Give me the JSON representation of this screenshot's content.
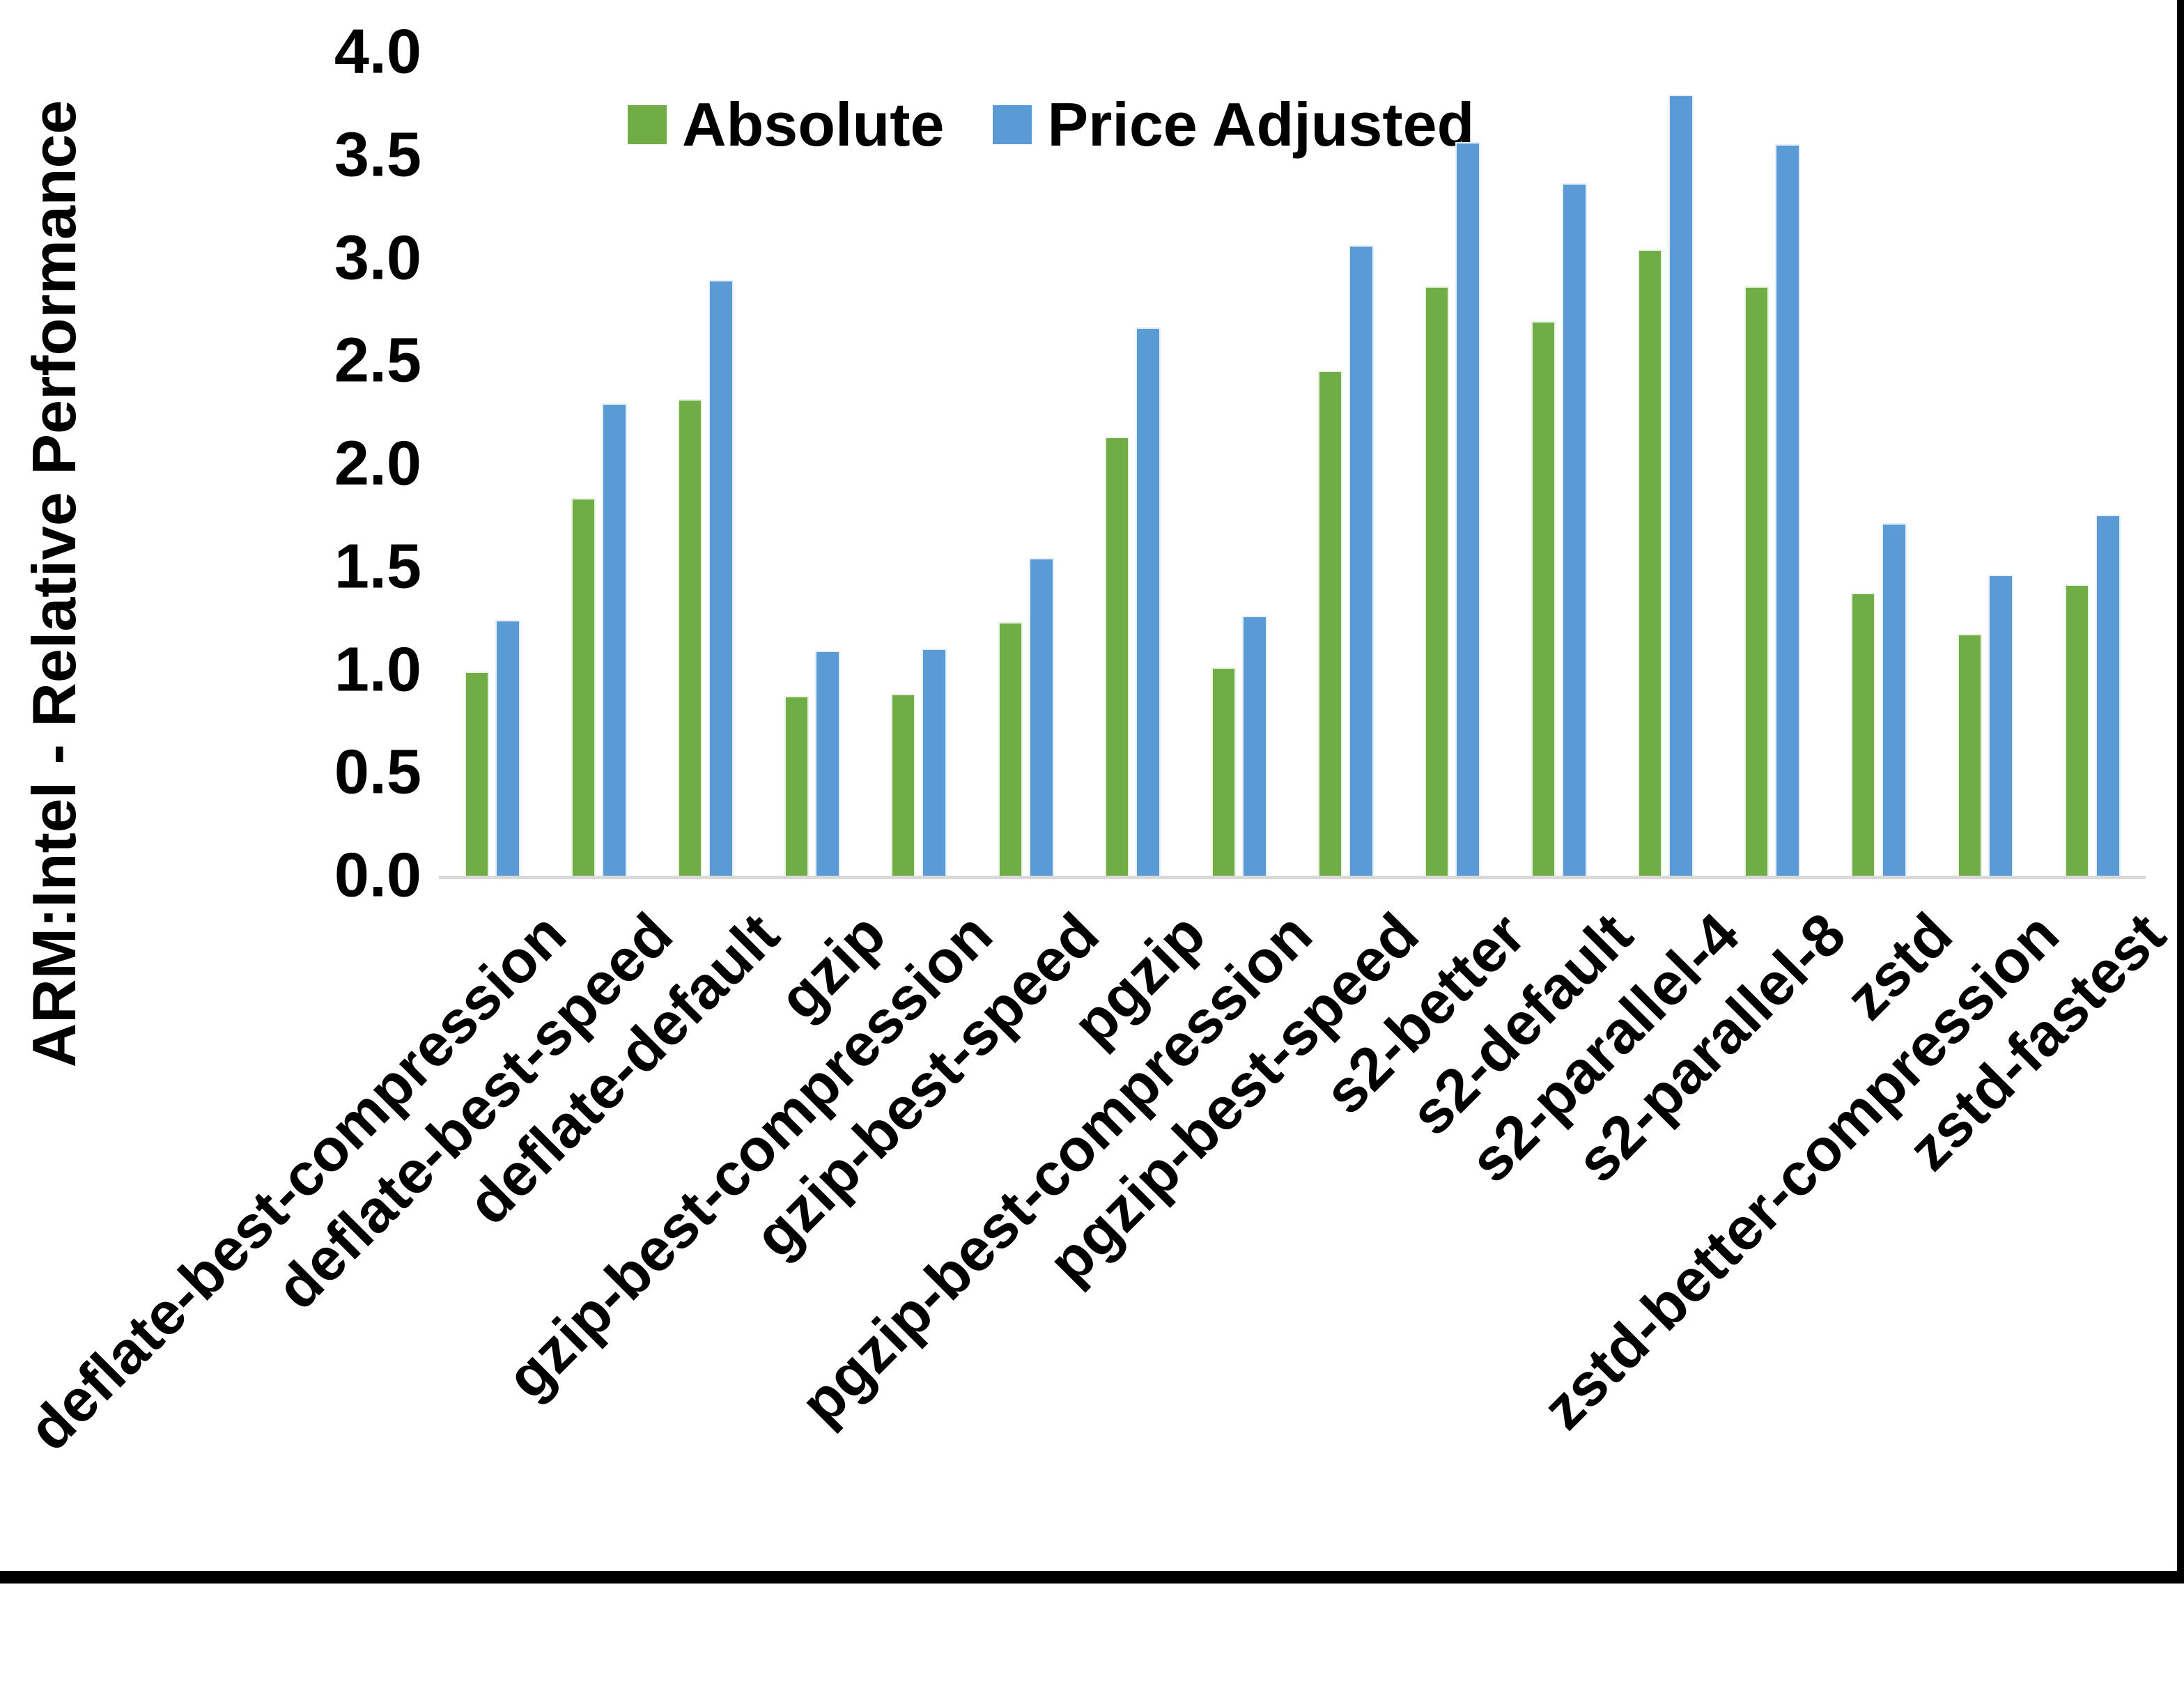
{
  "figure": {
    "background": "#ffffff",
    "border_color": "#000000"
  },
  "y_axis": {
    "title": "ARM:Intel - Relative Performance",
    "tick_labels": [
      "0.0",
      "0.5",
      "1.0",
      "1.5",
      "2.0",
      "2.5",
      "3.0",
      "3.5",
      "4.0"
    ],
    "tick_values": [
      0.0,
      0.5,
      1.0,
      1.5,
      2.0,
      2.5,
      3.0,
      3.5,
      4.0
    ],
    "axis_line_color": "#d9d9d9"
  },
  "legend": {
    "items": [
      {
        "label": "Absolute",
        "color": "#70AD47"
      },
      {
        "label": "Price Adjusted",
        "color": "#5B9BD5"
      }
    ]
  },
  "chart_data": {
    "type": "bar",
    "title": "",
    "xlabel": "",
    "ylabel": "ARM:Intel - Relative Performance",
    "ylim": [
      0,
      4
    ],
    "grid": false,
    "legend_position": "top",
    "categories": [
      "deflate-best-compression",
      "deflate-best-speed",
      "deflate-default",
      "gzip",
      "gzip-best-compression",
      "gzip-best-speed",
      "pgzip",
      "pgzip-best-compression",
      "pgzip-best-speed",
      "s2-better",
      "s2-default",
      "s2-parallel-4",
      "s2-parallel-8",
      "zstd",
      "zstd-better-compression",
      "zstd-fastest"
    ],
    "series": [
      {
        "name": "Absolute",
        "color": "#70AD47",
        "values": [
          1.0,
          1.84,
          2.32,
          0.88,
          0.89,
          1.24,
          2.14,
          1.02,
          2.46,
          2.87,
          2.7,
          3.05,
          2.87,
          1.38,
          1.18,
          1.42
        ]
      },
      {
        "name": "Price Adjusted",
        "color": "#5B9BD5",
        "values": [
          1.25,
          2.3,
          2.9,
          1.1,
          1.11,
          1.55,
          2.67,
          1.27,
          3.07,
          3.57,
          3.37,
          3.8,
          3.56,
          1.72,
          1.47,
          1.76
        ]
      }
    ]
  }
}
